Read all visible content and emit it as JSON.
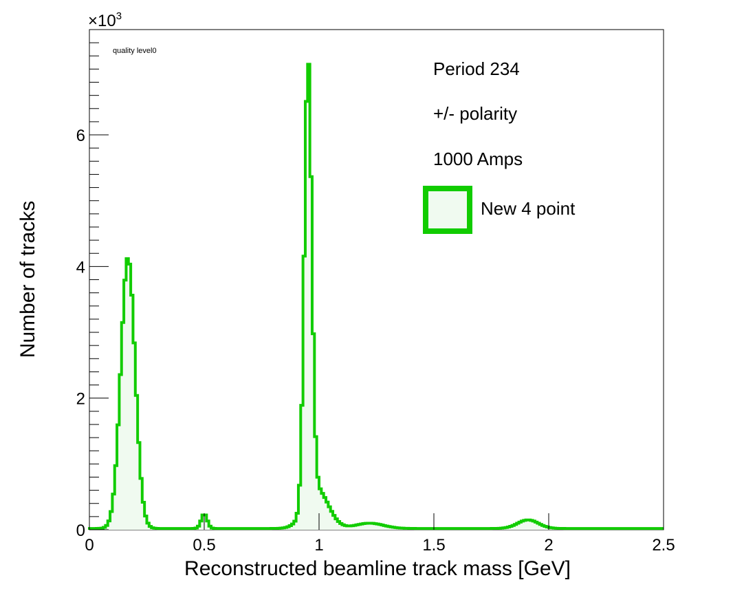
{
  "chart_data": {
    "type": "histogram",
    "title": "",
    "xlabel": "Reconstructed beamline track mass [GeV]",
    "ylabel": "Number of tracks",
    "y_multiplier": "×10",
    "y_multiplier_exp": "3",
    "xlim": [
      0,
      2.5
    ],
    "ylim": [
      0,
      7.6
    ],
    "x_ticks": [
      {
        "v": 0,
        "label": "0"
      },
      {
        "v": 0.5,
        "label": "0.5"
      },
      {
        "v": 1,
        "label": "1"
      },
      {
        "v": 1.5,
        "label": "1.5"
      },
      {
        "v": 2,
        "label": "2"
      },
      {
        "v": 2.5,
        "label": "2.5"
      }
    ],
    "y_ticks": [
      {
        "v": 0,
        "label": "0"
      },
      {
        "v": 2,
        "label": "2"
      },
      {
        "v": 4,
        "label": "4"
      },
      {
        "v": 6,
        "label": "6"
      }
    ],
    "annotations": {
      "quality": "quality level0",
      "period": "Period 234",
      "polarity": "+/- polarity",
      "current": "1000 Amps"
    },
    "legend": {
      "placement": "top-right",
      "label": "New 4 point"
    },
    "series": [
      {
        "name": "New 4 point",
        "color": "#11cc00",
        "fill": "#f0faf0",
        "peaks": [
          {
            "mu": 0.168,
            "sigma": 0.031,
            "amp": 4.12
          },
          {
            "mu": 0.5,
            "sigma": 0.013,
            "amp": 0.22
          },
          {
            "mu": 0.952,
            "sigma": 0.016,
            "amp": 6.7
          },
          {
            "mu": 0.99,
            "sigma": 0.05,
            "amp": 0.6
          },
          {
            "mu": 1.22,
            "sigma": 0.06,
            "amp": 0.08
          },
          {
            "mu": 1.91,
            "sigma": 0.045,
            "amp": 0.13
          }
        ],
        "baseline": 0.02
      }
    ]
  }
}
